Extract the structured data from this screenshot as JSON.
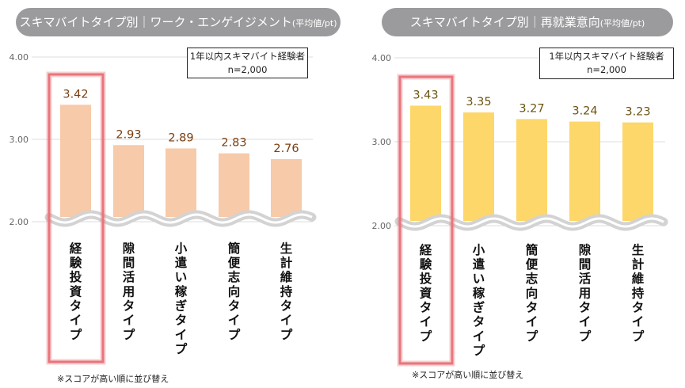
{
  "chart_data": [
    {
      "type": "bar",
      "title": "スキマバイトタイプ別｜ワーク・エンゲイジメント",
      "title_unit": "(平均値/pt)",
      "sample_label": "1年以内スキマバイト経験者",
      "sample_n": "n=2,000",
      "categories": [
        "経験投資タイプ",
        "隙間活用タイプ",
        "小遣い稼ぎタイプ",
        "簡便志向タイプ",
        "生計維持タイプ"
      ],
      "values": [
        3.42,
        2.93,
        2.89,
        2.83,
        2.76
      ],
      "value_labels": [
        "3.42",
        "2.93",
        "2.89",
        "2.83",
        "2.76"
      ],
      "highlighted_category": "経験投資タイプ",
      "ylim": [
        2.0,
        4.0
      ],
      "yticks": [
        "4.00",
        "3.00",
        "2.00"
      ],
      "axis_break": true,
      "grid": true,
      "bar_color": "#f7caa9",
      "label_color": "#7a3e10",
      "note": "※スコアが高い順に並び替え"
    },
    {
      "type": "bar",
      "title": "スキマバイトタイプ別｜再就業意向",
      "title_unit": "(平均値/pt)",
      "sample_label": "1年以内スキマバイト経験者",
      "sample_n": "n=2,000",
      "categories": [
        "経験投資タイプ",
        "小遣い稼ぎタイプ",
        "簡便志向タイプ",
        "隙間活用タイプ",
        "生計維持タイプ"
      ],
      "values": [
        3.43,
        3.35,
        3.27,
        3.24,
        3.23
      ],
      "value_labels": [
        "3.43",
        "3.35",
        "3.27",
        "3.24",
        "3.23"
      ],
      "highlighted_category": "経験投資タイプ",
      "ylim": [
        2.0,
        4.0
      ],
      "yticks": [
        "4.00",
        "3.00",
        "2.00"
      ],
      "axis_break": true,
      "grid": true,
      "bar_color": "#fdd76a",
      "label_color": "#6b5410",
      "note": "※スコアが高い順に並び替え"
    }
  ],
  "highlight_color": "#e8757c"
}
